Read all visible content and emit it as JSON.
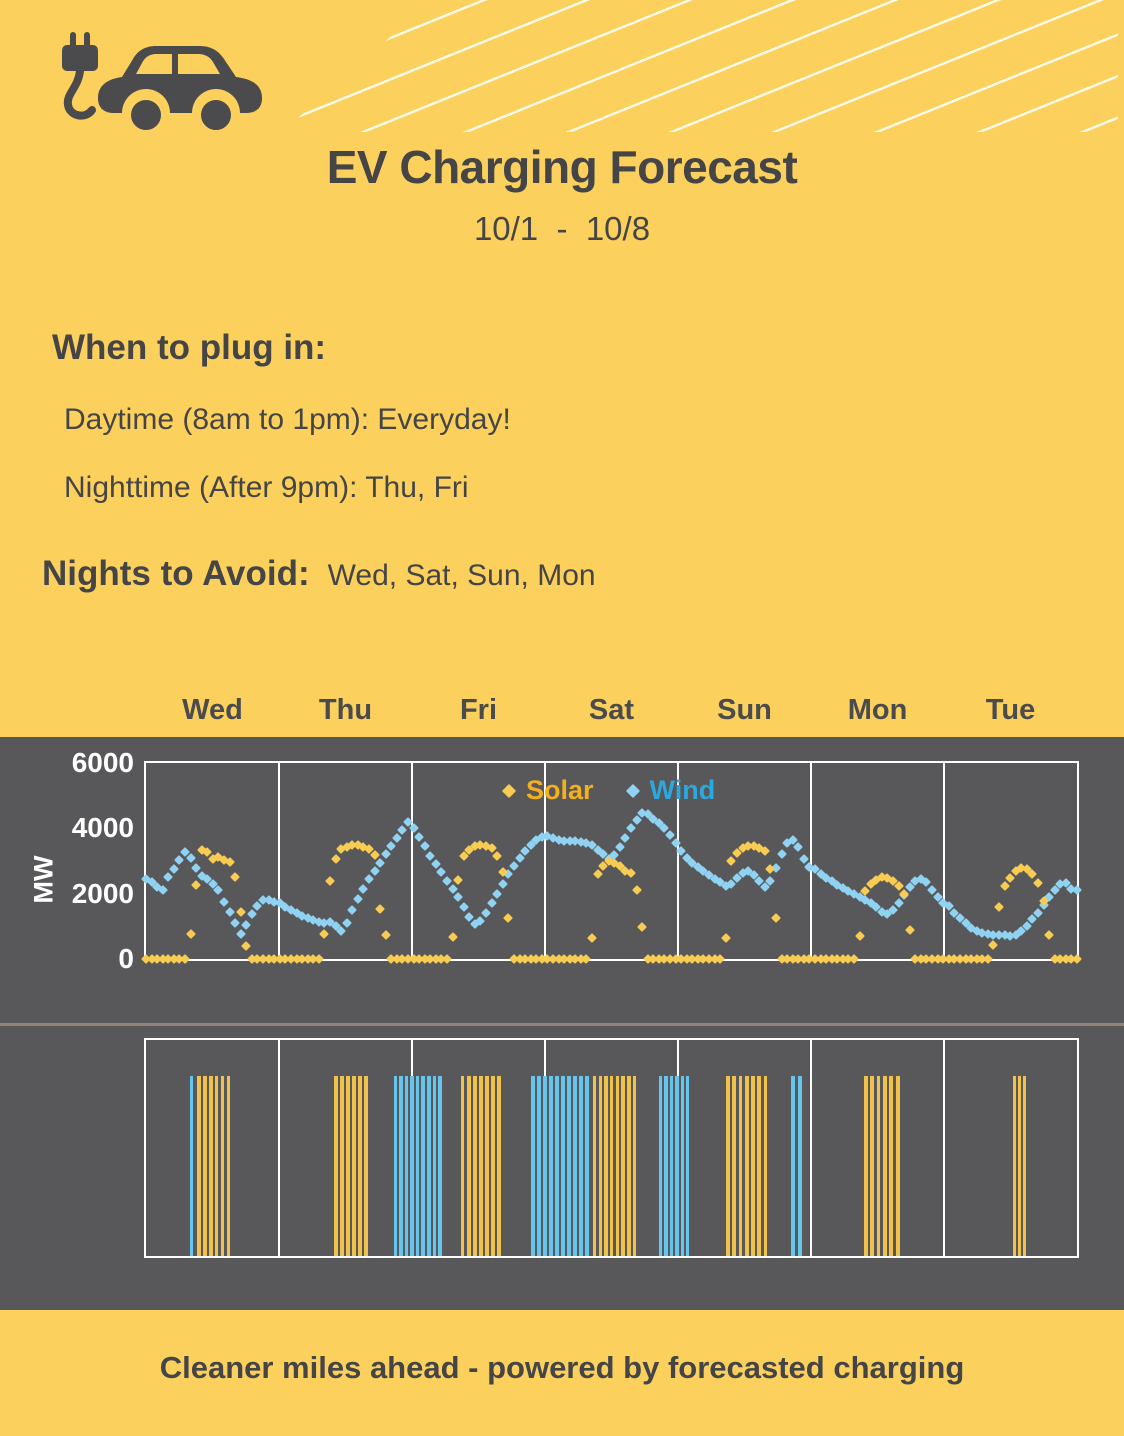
{
  "header": {
    "title": "EV Charging Forecast",
    "date_range": "10/1  -  10/8"
  },
  "recommendations": {
    "heading": "When to plug in:",
    "daytime_line": "Daytime (8am to 1pm): Everyday!",
    "nighttime_line": "Nighttime  (After 9pm): Thu, Fri",
    "avoid_label": "Nights to Avoid:",
    "avoid_days": "Wed, Sat, Sun, Mon"
  },
  "footer": {
    "text": "Cleaner miles ahead - powered by forecasted charging"
  },
  "colors": {
    "background": "#FBD05C",
    "panel": "#58585A",
    "solar_marker": "#F8CB52",
    "wind_marker": "#8FD2F2",
    "solar_bar": "#F0C14B",
    "wind_bar": "#66C5EC",
    "solar_legend_text": "#F3B01C",
    "wind_legend_text": "#2CA8E0",
    "dark_text": "#454547",
    "grid": "#FFFFFF"
  },
  "chart_data": [
    {
      "type": "scatter",
      "title": "Hourly Solar and Wind generation forecast (MW), 10/1 - 10/8",
      "ylabel": "MW",
      "ylim": [
        0,
        6000
      ],
      "yticks": [
        0,
        2000,
        4000,
        6000
      ],
      "grid": "vertical day dividers, white frame",
      "legend_position": "top center",
      "legend": [
        "Solar",
        "Wind"
      ],
      "days": [
        "Wed",
        "Thu",
        "Fri",
        "Sat",
        "Sun",
        "Mon",
        "Tue"
      ],
      "x_unit": "hour 0-23 of each day",
      "series": [
        {
          "name": "Solar",
          "values_by_day": [
            [
              0,
              0,
              0,
              0,
              0,
              0,
              0,
              0,
              760,
              2260,
              3340,
              3280,
              3060,
              3110,
              3030,
              2980,
              2500,
              1440,
              400,
              0,
              0,
              0,
              0,
              0
            ],
            [
              0,
              0,
              0,
              0,
              0,
              0,
              0,
              0,
              760,
              2400,
              3050,
              3360,
              3440,
              3480,
              3480,
              3440,
              3380,
              3180,
              1530,
              730,
              0,
              0,
              0,
              0
            ],
            [
              0,
              0,
              0,
              0,
              0,
              0,
              0,
              660,
              2430,
              3140,
              3350,
              3470,
              3500,
              3450,
              3400,
              3140,
              2650,
              1250,
              0,
              0,
              0,
              0,
              0,
              0
            ],
            [
              0,
              0,
              0,
              0,
              0,
              0,
              0,
              0,
              640,
              2600,
              2850,
              3000,
              2950,
              2850,
              2700,
              2630,
              2110,
              975,
              0,
              0,
              0,
              0,
              0,
              0
            ],
            [
              0,
              0,
              0,
              0,
              0,
              0,
              0,
              0,
              640,
              2990,
              3240,
              3390,
              3450,
              3450,
              3390,
              3300,
              2750,
              1250,
              0,
              0,
              0,
              0,
              0,
              0
            ],
            [
              0,
              0,
              0,
              0,
              0,
              0,
              0,
              0,
              710,
              2080,
              2300,
              2430,
              2500,
              2480,
              2400,
              2230,
              1990,
              880,
              0,
              0,
              0,
              0,
              0,
              0
            ],
            [
              0,
              0,
              0,
              0,
              0,
              0,
              0,
              0,
              440,
              1580,
              2220,
              2480,
              2680,
              2800,
              2760,
              2600,
              2320,
              1780,
              720,
              0,
              0,
              0,
              0,
              0
            ]
          ]
        },
        {
          "name": "Wind",
          "values_by_day": [
            [
              2440,
              2370,
              2200,
              2120,
              2500,
              2750,
              3020,
              3280,
              3100,
              2800,
              2550,
              2450,
              2300,
              2110,
              1760,
              1430,
              1100,
              780,
              1050,
              1390,
              1630,
              1820,
              1800,
              1750
            ],
            [
              1700,
              1600,
              1500,
              1400,
              1320,
              1260,
              1200,
              1130,
              1100,
              1130,
              1000,
              850,
              1100,
              1500,
              1850,
              2150,
              2450,
              2700,
              2950,
              3200,
              3450,
              3700,
              3950,
              4200
            ],
            [
              4000,
              3750,
              3450,
              3150,
              2900,
              2650,
              2400,
              2150,
              1900,
              1600,
              1300,
              1070,
              1150,
              1400,
              1700,
              2000,
              2300,
              2600,
              2850,
              3100,
              3300,
              3500,
              3650,
              3750
            ],
            [
              3760,
              3700,
              3650,
              3620,
              3600,
              3620,
              3580,
              3540,
              3480,
              3350,
              3200,
              3050,
              3180,
              3420,
              3700,
              4000,
              4260,
              4480,
              4450,
              4300,
              4170,
              4000,
              3800,
              3560
            ],
            [
              3300,
              3100,
              2950,
              2820,
              2700,
              2580,
              2460,
              2350,
              2250,
              2300,
              2480,
              2620,
              2700,
              2580,
              2400,
              2210,
              2400,
              2800,
              3200,
              3550,
              3640,
              3440,
              3060,
              2820
            ],
            [
              2740,
              2600,
              2480,
              2380,
              2280,
              2180,
              2080,
              2000,
              1900,
              1820,
              1700,
              1580,
              1450,
              1370,
              1500,
              1700,
              1950,
              2200,
              2400,
              2450,
              2350,
              2100,
              1900,
              1720
            ],
            [
              1610,
              1400,
              1250,
              1100,
              960,
              860,
              790,
              760,
              745,
              740,
              730,
              700,
              740,
              850,
              1000,
              1230,
              1400,
              1660,
              1890,
              2120,
              2300,
              2340,
              2130,
              2100
            ]
          ]
        }
      ]
    },
    {
      "type": "bar",
      "title": "Recommended charging windows (yellow = solar-rich hours, blue = wind-rich hours)",
      "days": [
        "Wed",
        "Thu",
        "Fri",
        "Sat",
        "Sun",
        "Mon",
        "Tue"
      ],
      "x_unit": "fraction of full week axis (Wed 00:00 - Tue 24:00)",
      "clusters": [
        {
          "series": "Wind",
          "start": 0.046,
          "end": 0.051,
          "stripes": 1
        },
        {
          "series": "Solar",
          "start": 0.054,
          "end": 0.092,
          "stripes": 6
        },
        {
          "series": "Solar",
          "start": 0.201,
          "end": 0.24,
          "stripes": 6
        },
        {
          "series": "Wind",
          "start": 0.265,
          "end": 0.319,
          "stripes": 9
        },
        {
          "series": "Solar",
          "start": 0.337,
          "end": 0.383,
          "stripes": 7
        },
        {
          "series": "Wind",
          "start": 0.413,
          "end": 0.477,
          "stripes": 10
        },
        {
          "series": "Solar",
          "start": 0.479,
          "end": 0.528,
          "stripes": 8
        },
        {
          "series": "Wind",
          "start": 0.55,
          "end": 0.585,
          "stripes": 6
        },
        {
          "series": "Solar",
          "start": 0.622,
          "end": 0.669,
          "stripes": 7
        },
        {
          "series": "Wind",
          "start": 0.692,
          "end": 0.706,
          "stripes": 2
        },
        {
          "series": "Solar",
          "start": 0.77,
          "end": 0.811,
          "stripes": 6
        },
        {
          "series": "Solar",
          "start": 0.93,
          "end": 0.947,
          "stripes": 3
        }
      ]
    }
  ]
}
